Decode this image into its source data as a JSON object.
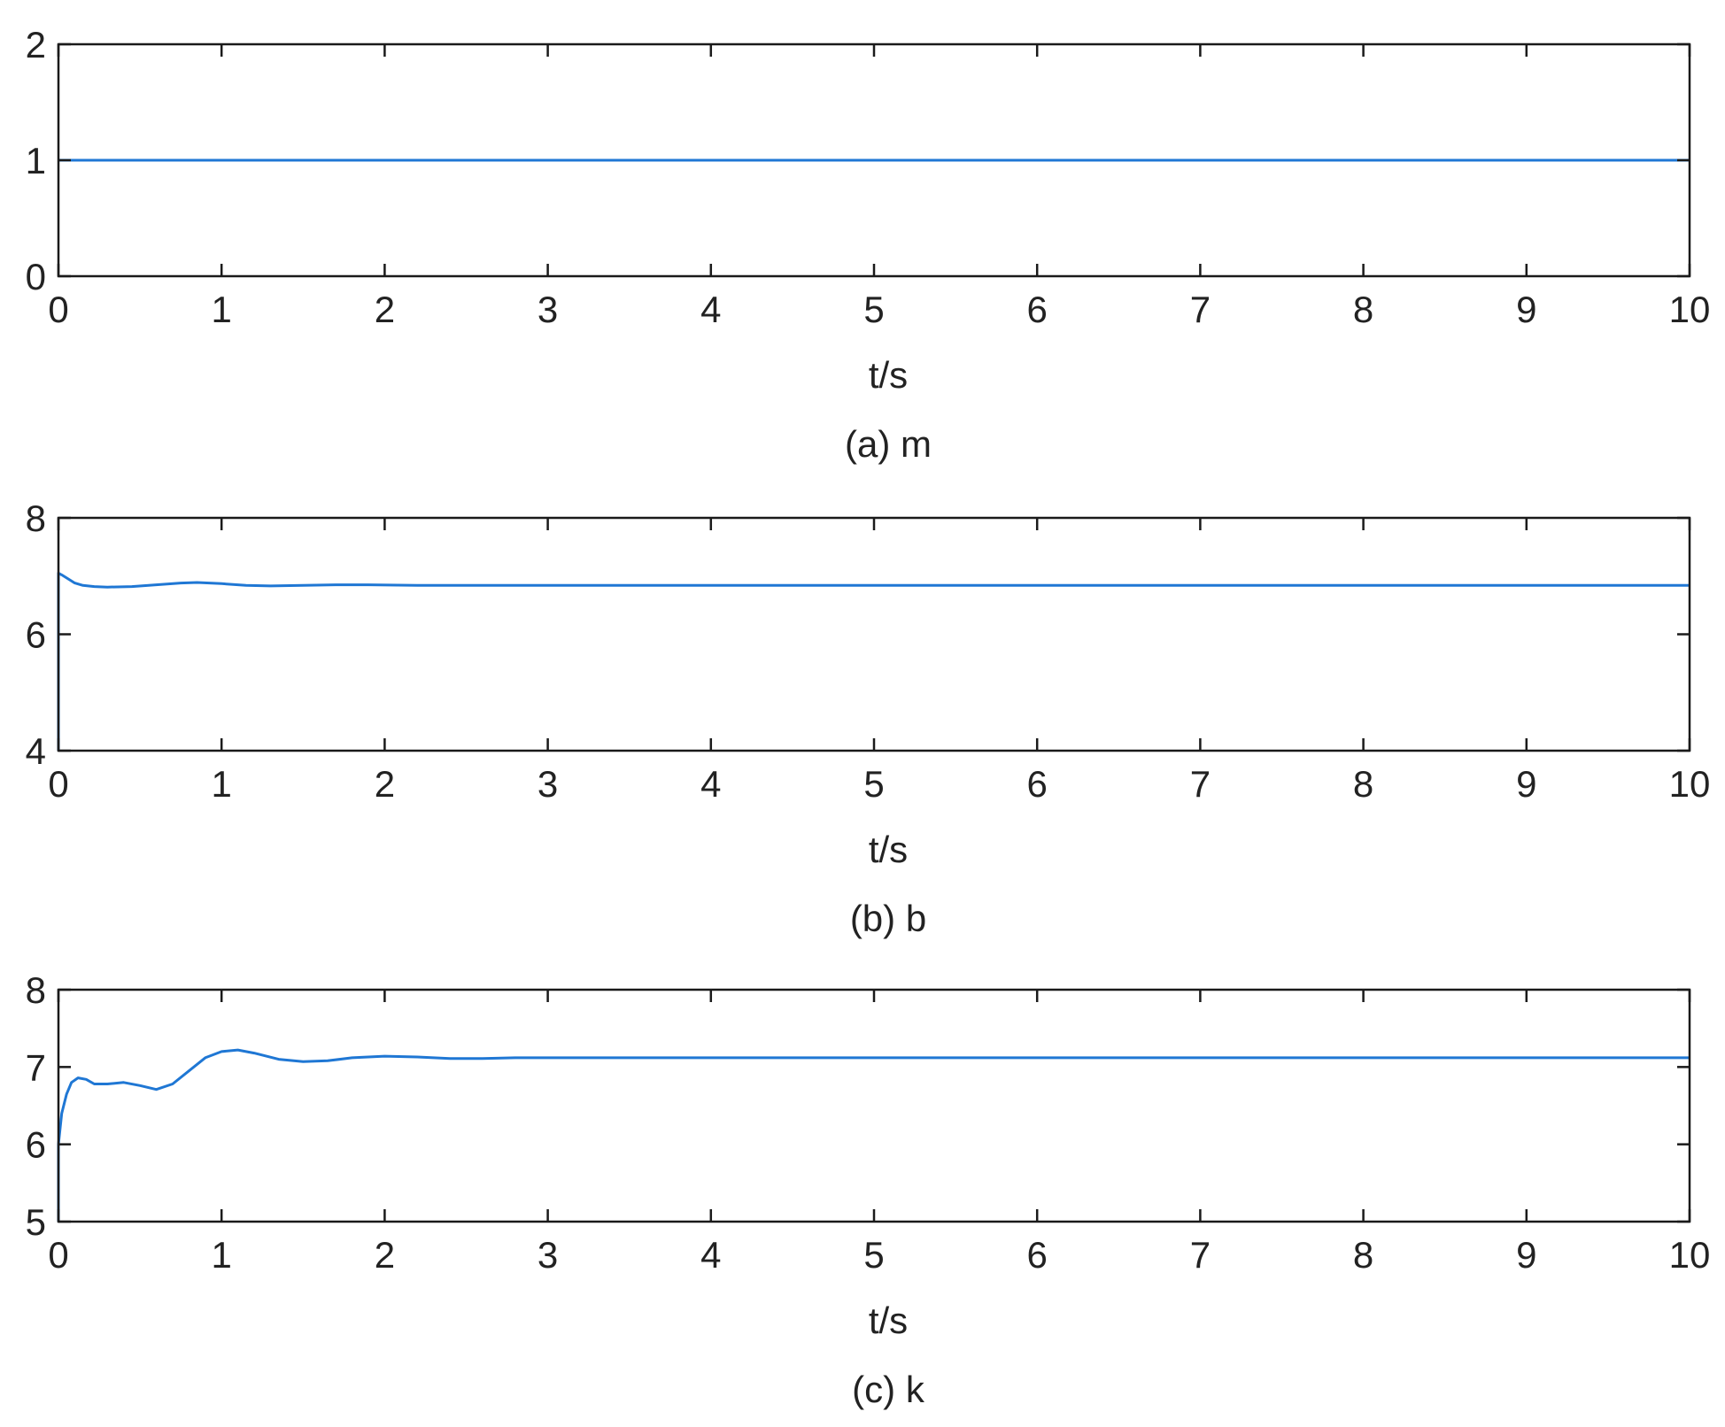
{
  "chart_data": [
    {
      "type": "line",
      "title": "",
      "caption": "(a) m",
      "xlabel": "t/s",
      "ylabel": "",
      "xlim": [
        0,
        10
      ],
      "ylim": [
        0,
        2
      ],
      "xticks": [
        0,
        1,
        2,
        3,
        4,
        5,
        6,
        7,
        8,
        9,
        10
      ],
      "yticks": [
        0,
        1,
        2
      ],
      "grid": false,
      "line_color": "#1f77d4",
      "series": [
        {
          "x": [
            0,
            10
          ],
          "y": [
            1,
            1
          ]
        }
      ]
    },
    {
      "type": "line",
      "title": "",
      "caption": "(b) b",
      "xlabel": "t/s",
      "ylabel": "",
      "xlim": [
        0,
        10
      ],
      "ylim": [
        4,
        8
      ],
      "xticks": [
        0,
        1,
        2,
        3,
        4,
        5,
        6,
        7,
        8,
        9,
        10
      ],
      "yticks": [
        4,
        6,
        8
      ],
      "grid": false,
      "line_color": "#1f77d4",
      "series": [
        {
          "x": [
            0,
            0.0,
            0.02,
            0.06,
            0.1,
            0.15,
            0.22,
            0.3,
            0.45,
            0.6,
            0.75,
            0.85,
            1.0,
            1.15,
            1.3,
            1.5,
            1.7,
            1.9,
            2.2,
            2.6,
            3.0,
            4.0,
            6.0,
            8.0,
            10.0
          ],
          "y": [
            4,
            7.05,
            7.02,
            6.95,
            6.88,
            6.84,
            6.82,
            6.81,
            6.82,
            6.85,
            6.88,
            6.89,
            6.87,
            6.84,
            6.83,
            6.84,
            6.85,
            6.85,
            6.84,
            6.84,
            6.84,
            6.84,
            6.84,
            6.84,
            6.84
          ]
        }
      ]
    },
    {
      "type": "line",
      "title": "",
      "caption": "(c) k",
      "xlabel": "t/s",
      "ylabel": "",
      "xlim": [
        0,
        10
      ],
      "ylim": [
        5,
        8
      ],
      "xticks": [
        0,
        1,
        2,
        3,
        4,
        5,
        6,
        7,
        8,
        9,
        10
      ],
      "yticks": [
        5,
        6,
        7,
        8
      ],
      "grid": false,
      "line_color": "#1f77d4",
      "series": [
        {
          "x": [
            0,
            0.0,
            0.02,
            0.05,
            0.08,
            0.12,
            0.17,
            0.22,
            0.3,
            0.4,
            0.5,
            0.6,
            0.7,
            0.8,
            0.9,
            1.0,
            1.1,
            1.2,
            1.35,
            1.5,
            1.65,
            1.8,
            2.0,
            2.2,
            2.4,
            2.6,
            2.8,
            3.0,
            4.0,
            6.0,
            8.0,
            10.0
          ],
          "y": [
            5,
            6.0,
            6.4,
            6.65,
            6.8,
            6.86,
            6.84,
            6.78,
            6.78,
            6.8,
            6.76,
            6.71,
            6.78,
            6.95,
            7.12,
            7.2,
            7.22,
            7.18,
            7.1,
            7.07,
            7.08,
            7.12,
            7.14,
            7.13,
            7.11,
            7.11,
            7.12,
            7.12,
            7.12,
            7.12,
            7.12,
            7.12
          ]
        }
      ]
    }
  ]
}
